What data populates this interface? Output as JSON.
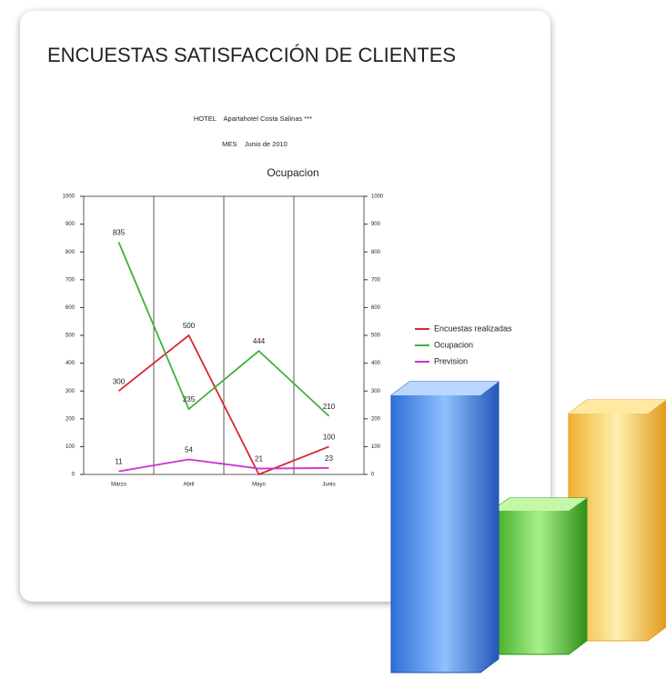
{
  "header": {
    "title": "ENCUESTAS SATISFACCIÓN DE CLIENTES",
    "hotel": "HOTEL    Apartahotel Costa Salinas ***",
    "month": "MES    Junio de 2010"
  },
  "chart_data": {
    "type": "line",
    "title": "Ocupacion",
    "categories": [
      "Marzo",
      "Abril",
      "Mayo",
      "Junio"
    ],
    "series": [
      {
        "name": "Encuestas realizadas",
        "color": "#d9262e",
        "values": [
          300,
          500,
          0,
          100
        ],
        "value_labels": [
          "300",
          "500",
          null,
          "100"
        ]
      },
      {
        "name": "Ocupacion",
        "color": "#3cb13c",
        "values": [
          835,
          235,
          444,
          210
        ]
      },
      {
        "name": "Prevision",
        "color": "#d22fd2",
        "values": [
          11,
          54,
          21,
          23
        ]
      }
    ],
    "ylim": [
      0,
      1000
    ],
    "yticks": [
      0,
      100,
      200,
      300,
      400,
      500,
      600,
      700,
      800,
      900,
      1000
    ],
    "legend": "right"
  }
}
